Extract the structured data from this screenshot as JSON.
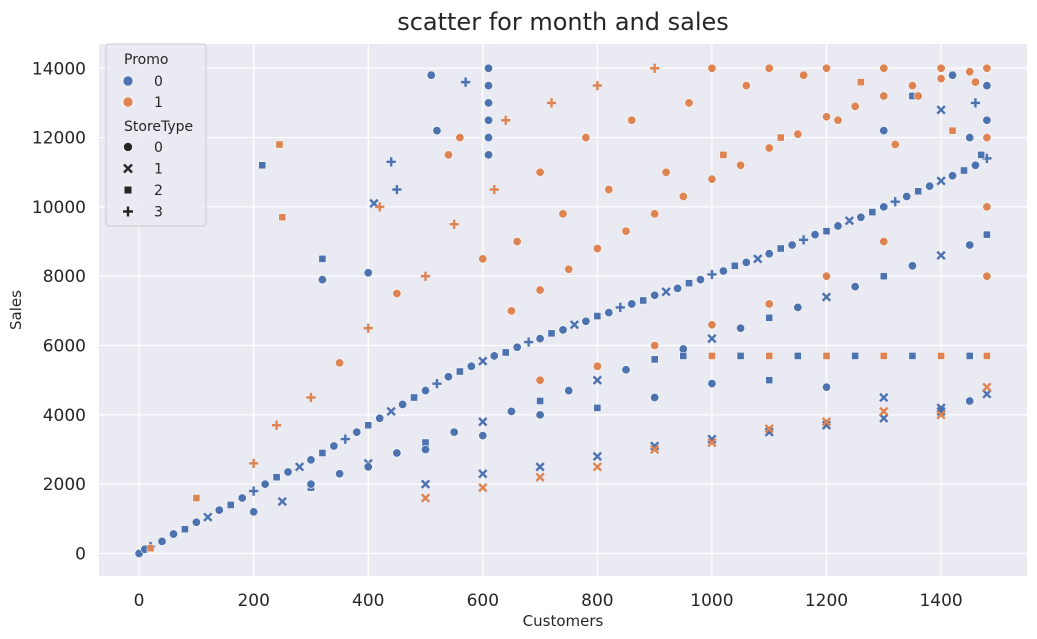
{
  "chart_data": {
    "type": "scatter",
    "title": "scatter for month and sales",
    "xlabel": "Customers",
    "ylabel": "Sales",
    "xlim": [
      -70,
      1550
    ],
    "ylim": [
      -650,
      14700
    ],
    "x_ticks": [
      0,
      200,
      400,
      600,
      800,
      1000,
      1200,
      1400
    ],
    "y_ticks": [
      0,
      2000,
      4000,
      6000,
      8000,
      10000,
      12000,
      14000
    ],
    "grid": true,
    "background": "#eaeaf2",
    "legend": {
      "placement": "top-left",
      "hue_title": "Promo",
      "hue_entries": [
        {
          "label": "0",
          "color": "#4c72b0"
        },
        {
          "label": "1",
          "color": "#dd8452"
        }
      ],
      "style_title": "StoreType",
      "style_entries": [
        {
          "label": "0",
          "marker": "circle"
        },
        {
          "label": "1",
          "marker": "x"
        },
        {
          "label": "2",
          "marker": "square"
        },
        {
          "label": "3",
          "marker": "plus"
        }
      ]
    },
    "series": [
      {
        "promo": "0",
        "color": "#4c72b0",
        "points": [
          [
            0,
            0,
            0
          ],
          [
            10,
            120,
            0
          ],
          [
            20,
            200,
            3
          ],
          [
            40,
            350,
            0
          ],
          [
            60,
            560,
            0
          ],
          [
            80,
            700,
            2
          ],
          [
            100,
            900,
            0
          ],
          [
            120,
            1050,
            1
          ],
          [
            140,
            1250,
            0
          ],
          [
            160,
            1400,
            2
          ],
          [
            180,
            1600,
            0
          ],
          [
            200,
            1800,
            3
          ],
          [
            220,
            2000,
            0
          ],
          [
            240,
            2200,
            2
          ],
          [
            260,
            2350,
            0
          ],
          [
            280,
            2500,
            1
          ],
          [
            300,
            2700,
            0
          ],
          [
            320,
            2900,
            2
          ],
          [
            340,
            3100,
            0
          ],
          [
            360,
            3300,
            3
          ],
          [
            380,
            3500,
            0
          ],
          [
            400,
            3700,
            2
          ],
          [
            420,
            3900,
            0
          ],
          [
            440,
            4100,
            1
          ],
          [
            460,
            4300,
            0
          ],
          [
            480,
            4500,
            2
          ],
          [
            500,
            4700,
            0
          ],
          [
            520,
            4900,
            3
          ],
          [
            540,
            5100,
            0
          ],
          [
            560,
            5250,
            2
          ],
          [
            580,
            5400,
            0
          ],
          [
            600,
            5550,
            1
          ],
          [
            620,
            5700,
            0
          ],
          [
            640,
            5800,
            2
          ],
          [
            660,
            5950,
            0
          ],
          [
            680,
            6100,
            3
          ],
          [
            700,
            6200,
            0
          ],
          [
            720,
            6350,
            2
          ],
          [
            740,
            6450,
            0
          ],
          [
            760,
            6600,
            1
          ],
          [
            780,
            6700,
            0
          ],
          [
            800,
            6850,
            2
          ],
          [
            820,
            6950,
            0
          ],
          [
            840,
            7100,
            3
          ],
          [
            860,
            7200,
            0
          ],
          [
            880,
            7300,
            2
          ],
          [
            900,
            7450,
            0
          ],
          [
            920,
            7550,
            1
          ],
          [
            940,
            7650,
            0
          ],
          [
            960,
            7800,
            2
          ],
          [
            980,
            7900,
            0
          ],
          [
            1000,
            8050,
            3
          ],
          [
            1020,
            8150,
            0
          ],
          [
            1040,
            8300,
            2
          ],
          [
            1060,
            8400,
            0
          ],
          [
            1080,
            8500,
            1
          ],
          [
            1100,
            8650,
            0
          ],
          [
            1120,
            8800,
            2
          ],
          [
            1140,
            8900,
            0
          ],
          [
            1160,
            9050,
            3
          ],
          [
            1180,
            9200,
            0
          ],
          [
            1200,
            9300,
            2
          ],
          [
            1220,
            9450,
            0
          ],
          [
            1240,
            9600,
            1
          ],
          [
            1260,
            9700,
            0
          ],
          [
            1280,
            9850,
            2
          ],
          [
            1300,
            10000,
            0
          ],
          [
            1320,
            10150,
            3
          ],
          [
            1340,
            10300,
            0
          ],
          [
            1360,
            10450,
            2
          ],
          [
            1380,
            10600,
            0
          ],
          [
            1400,
            10750,
            1
          ],
          [
            1420,
            10900,
            0
          ],
          [
            1440,
            11050,
            2
          ],
          [
            1460,
            11200,
            0
          ],
          [
            1480,
            11400,
            3
          ],
          [
            200,
            1200,
            0
          ],
          [
            250,
            1500,
            1
          ],
          [
            300,
            1900,
            2
          ],
          [
            350,
            2300,
            0
          ],
          [
            400,
            2600,
            1
          ],
          [
            450,
            2900,
            0
          ],
          [
            500,
            3200,
            2
          ],
          [
            550,
            3500,
            0
          ],
          [
            600,
            3800,
            1
          ],
          [
            650,
            4100,
            0
          ],
          [
            700,
            4400,
            2
          ],
          [
            750,
            4700,
            0
          ],
          [
            800,
            5000,
            1
          ],
          [
            850,
            5300,
            0
          ],
          [
            900,
            5600,
            2
          ],
          [
            950,
            5900,
            0
          ],
          [
            1000,
            6200,
            1
          ],
          [
            1050,
            6500,
            0
          ],
          [
            1100,
            6800,
            2
          ],
          [
            1150,
            7100,
            0
          ],
          [
            1200,
            7400,
            1
          ],
          [
            1250,
            7700,
            0
          ],
          [
            1300,
            8000,
            2
          ],
          [
            1350,
            8300,
            0
          ],
          [
            1400,
            8600,
            1
          ],
          [
            1450,
            8900,
            0
          ],
          [
            1480,
            9200,
            2
          ],
          [
            500,
            2000,
            1
          ],
          [
            600,
            2300,
            1
          ],
          [
            700,
            2500,
            1
          ],
          [
            800,
            2800,
            1
          ],
          [
            900,
            3100,
            1
          ],
          [
            1000,
            3300,
            1
          ],
          [
            1100,
            3500,
            1
          ],
          [
            1200,
            3700,
            1
          ],
          [
            1300,
            3900,
            1
          ],
          [
            1400,
            4100,
            1
          ],
          [
            1480,
            4600,
            1
          ],
          [
            320,
            7900,
            0
          ],
          [
            400,
            8100,
            0
          ],
          [
            410,
            10100,
            1
          ],
          [
            450,
            10500,
            3
          ],
          [
            440,
            11300,
            3
          ],
          [
            510,
            13800,
            0
          ],
          [
            520,
            12200,
            0
          ],
          [
            215,
            11200,
            2
          ],
          [
            320,
            8500,
            2
          ],
          [
            570,
            13600,
            3
          ],
          [
            610,
            14000,
            0
          ],
          [
            610,
            13500,
            0
          ],
          [
            610,
            13000,
            0
          ],
          [
            610,
            12500,
            0
          ],
          [
            610,
            12000,
            0
          ],
          [
            610,
            11500,
            0
          ],
          [
            1450,
            12000,
            0
          ],
          [
            1470,
            11500,
            2
          ],
          [
            1480,
            12500,
            0
          ],
          [
            1460,
            13000,
            3
          ],
          [
            1480,
            13500,
            0
          ],
          [
            1300,
            12200,
            0
          ],
          [
            1350,
            13200,
            2
          ],
          [
            1420,
            13800,
            0
          ],
          [
            1480,
            14000,
            0
          ],
          [
            1400,
            12800,
            1
          ],
          [
            950,
            5700,
            2
          ],
          [
            1050,
            5700,
            2
          ],
          [
            1150,
            5700,
            2
          ],
          [
            1250,
            5700,
            2
          ],
          [
            1350,
            5700,
            2
          ],
          [
            1450,
            5700,
            2
          ],
          [
            1300,
            4500,
            1
          ],
          [
            1400,
            4200,
            1
          ],
          [
            1450,
            4400,
            0
          ],
          [
            1200,
            4800,
            0
          ],
          [
            1100,
            5000,
            2
          ],
          [
            1000,
            4900,
            0
          ],
          [
            900,
            4500,
            0
          ],
          [
            800,
            4200,
            2
          ],
          [
            700,
            4000,
            0
          ],
          [
            600,
            3400,
            0
          ],
          [
            500,
            3000,
            0
          ],
          [
            400,
            2500,
            0
          ],
          [
            300,
            2000,
            0
          ]
        ]
      },
      {
        "promo": "1",
        "color": "#dd8452",
        "points": [
          [
            20,
            150,
            2
          ],
          [
            100,
            1600,
            2
          ],
          [
            200,
            2600,
            3
          ],
          [
            240,
            3700,
            3
          ],
          [
            250,
            9700,
            2
          ],
          [
            245,
            11800,
            2
          ],
          [
            300,
            4500,
            3
          ],
          [
            350,
            5500,
            0
          ],
          [
            400,
            6500,
            3
          ],
          [
            420,
            10000,
            3
          ],
          [
            450,
            7500,
            0
          ],
          [
            500,
            8000,
            3
          ],
          [
            540,
            11500,
            0
          ],
          [
            550,
            9500,
            3
          ],
          [
            560,
            12000,
            0
          ],
          [
            600,
            8500,
            0
          ],
          [
            620,
            10500,
            3
          ],
          [
            640,
            12500,
            3
          ],
          [
            660,
            9000,
            0
          ],
          [
            700,
            11000,
            0
          ],
          [
            720,
            13000,
            3
          ],
          [
            740,
            9800,
            0
          ],
          [
            780,
            12000,
            0
          ],
          [
            800,
            13500,
            3
          ],
          [
            820,
            10500,
            0
          ],
          [
            860,
            12500,
            0
          ],
          [
            900,
            14000,
            3
          ],
          [
            920,
            11000,
            0
          ],
          [
            960,
            13000,
            0
          ],
          [
            1000,
            14000,
            0
          ],
          [
            1020,
            11500,
            2
          ],
          [
            1060,
            13500,
            0
          ],
          [
            1100,
            14000,
            0
          ],
          [
            1120,
            12000,
            2
          ],
          [
            1160,
            13800,
            0
          ],
          [
            1200,
            14000,
            0
          ],
          [
            1220,
            12500,
            0
          ],
          [
            1260,
            13600,
            2
          ],
          [
            1300,
            14000,
            0
          ],
          [
            1320,
            11800,
            0
          ],
          [
            1360,
            13200,
            0
          ],
          [
            1400,
            14000,
            0
          ],
          [
            1420,
            12200,
            2
          ],
          [
            1460,
            13600,
            0
          ],
          [
            1480,
            14000,
            0
          ],
          [
            650,
            7000,
            0
          ],
          [
            700,
            7600,
            0
          ],
          [
            750,
            8200,
            0
          ],
          [
            800,
            8800,
            0
          ],
          [
            850,
            9300,
            0
          ],
          [
            900,
            9800,
            0
          ],
          [
            950,
            10300,
            0
          ],
          [
            1000,
            10800,
            0
          ],
          [
            1050,
            11200,
            0
          ],
          [
            1100,
            11700,
            0
          ],
          [
            1150,
            12100,
            0
          ],
          [
            1200,
            12600,
            0
          ],
          [
            1250,
            12900,
            0
          ],
          [
            1300,
            13200,
            0
          ],
          [
            1350,
            13500,
            0
          ],
          [
            1400,
            13700,
            0
          ],
          [
            1450,
            13900,
            0
          ],
          [
            500,
            1600,
            1
          ],
          [
            600,
            1900,
            1
          ],
          [
            700,
            2200,
            1
          ],
          [
            800,
            2500,
            1
          ],
          [
            900,
            3000,
            1
          ],
          [
            1000,
            3200,
            1
          ],
          [
            1100,
            3600,
            1
          ],
          [
            1200,
            3800,
            1
          ],
          [
            1300,
            4100,
            1
          ],
          [
            1400,
            4000,
            1
          ],
          [
            1480,
            4800,
            1
          ],
          [
            1000,
            5700,
            2
          ],
          [
            1100,
            5700,
            2
          ],
          [
            1200,
            5700,
            2
          ],
          [
            1300,
            5700,
            2
          ],
          [
            1400,
            5700,
            2
          ],
          [
            1480,
            5700,
            2
          ],
          [
            1480,
            8000,
            0
          ],
          [
            1480,
            10000,
            0
          ],
          [
            1480,
            12000,
            0
          ],
          [
            1300,
            9000,
            0
          ],
          [
            1200,
            8000,
            0
          ],
          [
            1100,
            7200,
            0
          ],
          [
            1000,
            6600,
            0
          ],
          [
            900,
            6000,
            0
          ],
          [
            800,
            5400,
            0
          ],
          [
            700,
            5000,
            0
          ]
        ]
      }
    ]
  }
}
